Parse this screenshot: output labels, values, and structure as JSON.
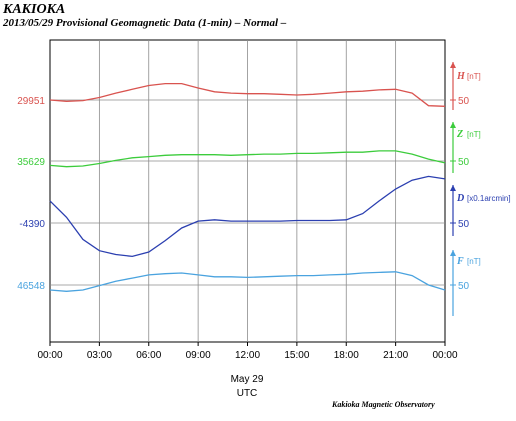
{
  "header": {
    "title": "KAKIOKA",
    "subtitle": "2013/05/29  Provisional Geomagnetic Data (1-min)  – Normal –"
  },
  "footer": {
    "credit": "Kakioka Magnetic Observatory"
  },
  "chart_data": {
    "type": "line",
    "x": [
      "00:00",
      "01:00",
      "02:00",
      "03:00",
      "04:00",
      "05:00",
      "06:00",
      "07:00",
      "08:00",
      "09:00",
      "10:00",
      "11:00",
      "12:00",
      "13:00",
      "14:00",
      "15:00",
      "16:00",
      "17:00",
      "18:00",
      "19:00",
      "20:00",
      "21:00",
      "22:00",
      "23:00",
      "00:00"
    ],
    "x_tick_labels": [
      "00:00",
      "03:00",
      "06:00",
      "09:00",
      "12:00",
      "15:00",
      "18:00",
      "21:00",
      "00:00"
    ],
    "date_label": "May 29",
    "xlabel": "UTC",
    "grid": true,
    "series": [
      {
        "name": "H",
        "unit": "[nT]",
        "reference_value": "29951",
        "scale_label": "50",
        "color": "#d9534f",
        "values": [
          29951,
          29949,
          29950,
          29955,
          29962,
          29968,
          29974,
          29977,
          29977,
          29970,
          29964,
          29962,
          29961,
          29961,
          29960,
          29959,
          29960,
          29962,
          29964,
          29965,
          29967,
          29968,
          29962,
          29942,
          29941
        ]
      },
      {
        "name": "Z",
        "unit": "[nT]",
        "reference_value": "35629",
        "scale_label": "50",
        "color": "#3ccc3c",
        "values": [
          35622,
          35620,
          35621,
          35625,
          35630,
          35634,
          35636,
          35638,
          35639,
          35639,
          35639,
          35638,
          35639,
          35640,
          35640,
          35641,
          35641,
          35642,
          35643,
          35643,
          35645,
          35645,
          35640,
          35632,
          35626
        ]
      },
      {
        "name": "D",
        "unit": "[x0.1arcmin]",
        "reference_value": "-4390",
        "scale_label": "50",
        "color": "#2b3fb0",
        "values": [
          -4355,
          -4381,
          -4416,
          -4434,
          -4440,
          -4443,
          -4436,
          -4418,
          -4398,
          -4387,
          -4385,
          -4387,
          -4387,
          -4387,
          -4387,
          -4386,
          -4386,
          -4386,
          -4385,
          -4375,
          -4355,
          -4336,
          -4322,
          -4316,
          -4320
        ]
      },
      {
        "name": "F",
        "unit": "[nT]",
        "reference_value": "46548",
        "scale_label": "50",
        "color": "#4aa3df",
        "values": [
          46540,
          46538,
          46540,
          46547,
          46554,
          46559,
          46564,
          46566,
          46567,
          46564,
          46561,
          46561,
          46560,
          46561,
          46562,
          46563,
          46563,
          46564,
          46565,
          46567,
          46568,
          46569,
          46563,
          46548,
          46540
        ]
      }
    ]
  }
}
